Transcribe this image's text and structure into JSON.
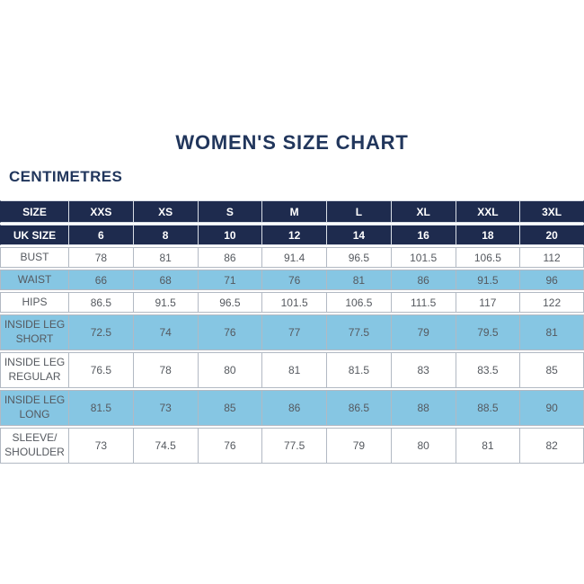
{
  "page": {
    "title": "WOMEN'S SIZE CHART",
    "subtitle": "CENTIMETRES"
  },
  "colors": {
    "header_navy": "#1e2b4e",
    "text_navy": "#21365c",
    "row_blue": "#86c6e3",
    "cell_text": "#55595f",
    "label_text": "#3e4248",
    "border": "#b2b9c3"
  },
  "chart_data": {
    "type": "table",
    "title": "WOMEN'S SIZE CHART",
    "unit_label": "CENTIMETRES",
    "columns": [
      "SIZE",
      "XXS",
      "XS",
      "S",
      "M",
      "L",
      "XL",
      "XXL",
      "3XL"
    ],
    "uk_size_row": [
      "UK SIZE",
      "6",
      "8",
      "10",
      "12",
      "14",
      "16",
      "18",
      "20"
    ],
    "rows": [
      [
        "BUST",
        "78",
        "81",
        "86",
        "91.4",
        "96.5",
        "101.5",
        "106.5",
        "112"
      ],
      [
        "WAIST",
        "66",
        "68",
        "71",
        "76",
        "81",
        "86",
        "91.5",
        "96"
      ],
      [
        "HIPS",
        "86.5",
        "91.5",
        "96.5",
        "101.5",
        "106.5",
        "111.5",
        "117",
        "122"
      ],
      [
        "INSIDE LEG SHORT",
        "72.5",
        "74",
        "76",
        "77",
        "77.5",
        "79",
        "79.5",
        "81"
      ],
      [
        "INSIDE LEG REGULAR",
        "76.5",
        "78",
        "80",
        "81",
        "81.5",
        "83",
        "83.5",
        "85"
      ],
      [
        "INSIDE LEG LONG",
        "81.5",
        "73",
        "85",
        "86",
        "86.5",
        "88",
        "88.5",
        "90"
      ],
      [
        "SLEEVE/ SHOULDER",
        "73",
        "74.5",
        "76",
        "77.5",
        "79",
        "80",
        "81",
        "82"
      ]
    ],
    "layout": {
      "header_rows": 2,
      "highlight_pattern": "alternating body rows (WAIST, INSIDE LEG SHORT, INSIDE LEG LONG) in light blue",
      "grid": true,
      "legend": false
    }
  }
}
